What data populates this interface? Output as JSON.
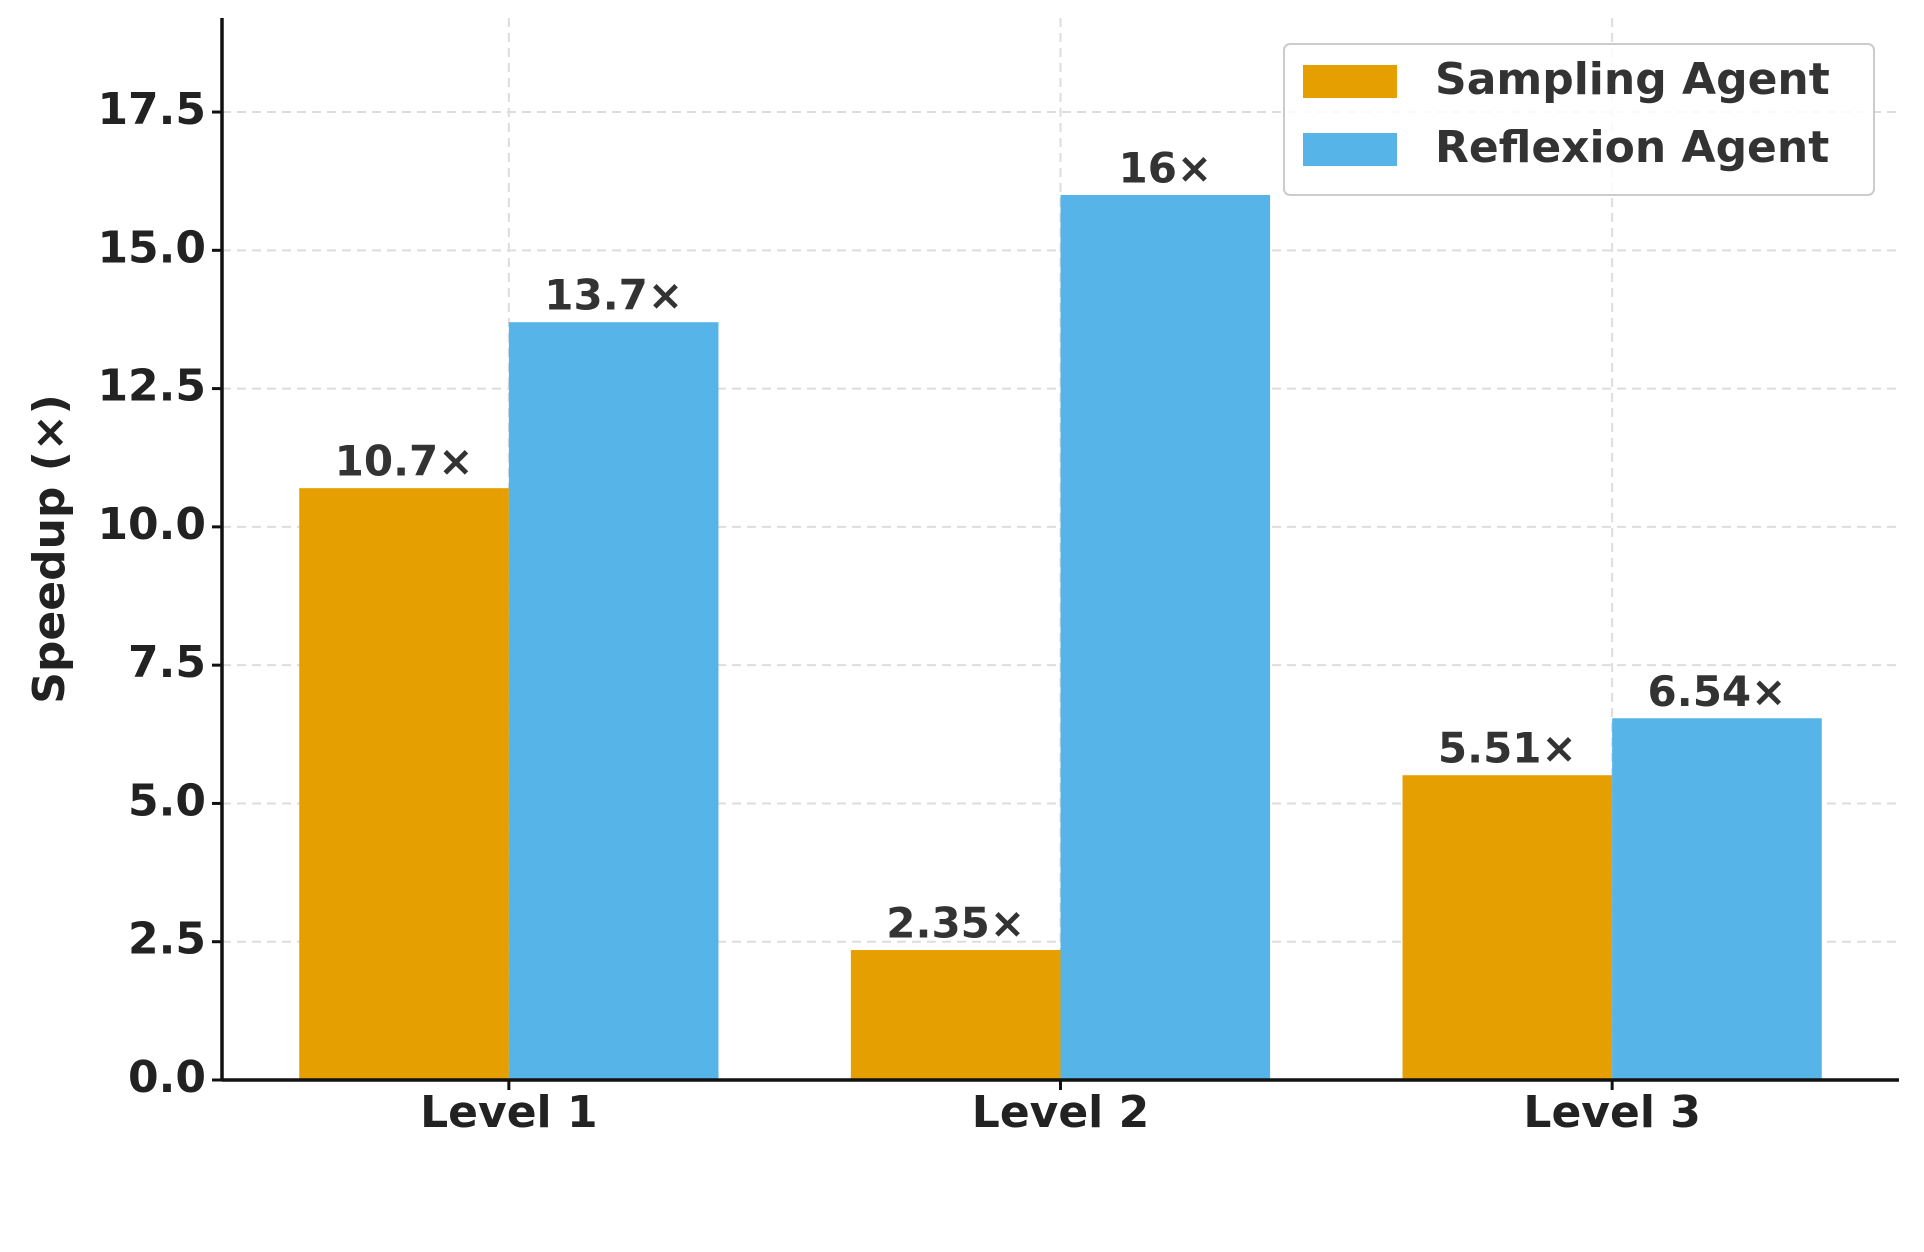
{
  "chart_data": {
    "type": "bar",
    "y_label": "Speedup (×)",
    "categories": [
      "Level 1",
      "Level 2",
      "Level 3"
    ],
    "series": [
      {
        "name": "Sampling Agent",
        "color": "#E69F00",
        "values": [
          10.7,
          2.35,
          5.51
        ],
        "value_labels": [
          "10.7×",
          "2.35×",
          "5.51×"
        ]
      },
      {
        "name": "Reflexion Agent",
        "color": "#56B4E9",
        "values": [
          13.7,
          16,
          6.54
        ],
        "value_labels": [
          "13.7×",
          "16×",
          "6.54×"
        ]
      }
    ],
    "ylim": [
      0,
      19.2
    ],
    "yticks": [
      {
        "value": 0,
        "label": "0.0"
      },
      {
        "value": 2.5,
        "label": "2.5"
      },
      {
        "value": 5,
        "label": "5.0"
      },
      {
        "value": 7.5,
        "label": "7.5"
      },
      {
        "value": 10,
        "label": "10.0"
      },
      {
        "value": 12.5,
        "label": "12.5"
      },
      {
        "value": 15,
        "label": "15.0"
      },
      {
        "value": 17.5,
        "label": "17.5"
      }
    ],
    "grid": true,
    "legend": "upper right"
  }
}
